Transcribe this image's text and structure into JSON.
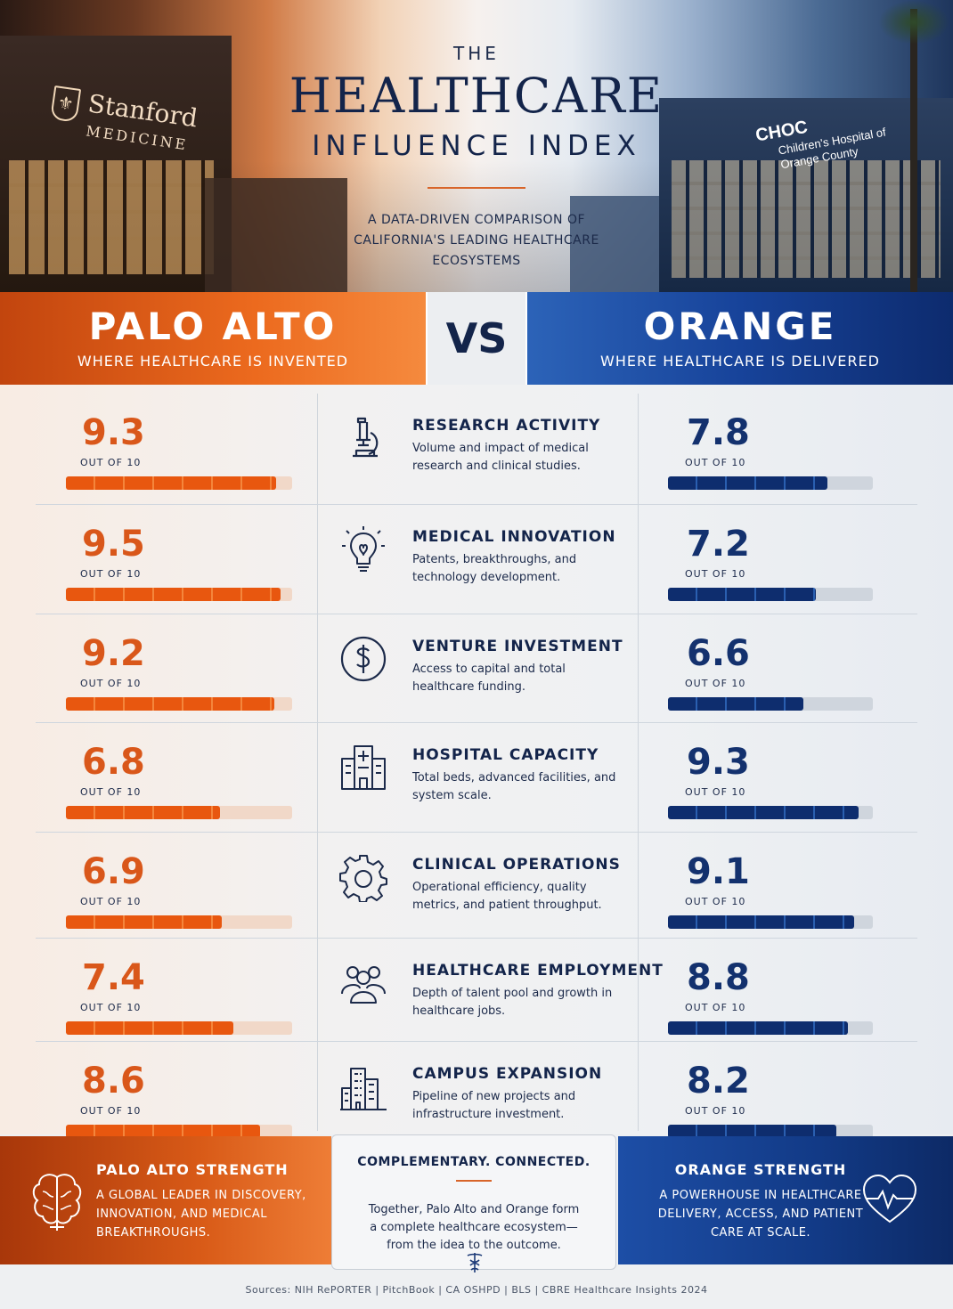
{
  "header": {
    "the": "THE",
    "title": "HEALTHCARE",
    "subtitle": "INFLUENCE INDEX",
    "description": "A DATA-DRIVEN COMPARISON OF CALIFORNIA'S LEADING HEALTHCARE ECOSYSTEMS",
    "left_logo_name": "Stanford",
    "left_logo_sub": "MEDICINE",
    "right_logo_name": "CHOC",
    "right_logo_sub": "Children's Hospital of Orange County"
  },
  "banner": {
    "left_city": "PALO ALTO",
    "left_tagline": "WHERE HEALTHCARE IS INVENTED",
    "vs": "VS",
    "right_city": "ORANGE",
    "right_tagline": "WHERE HEALTHCARE IS DELIVERED"
  },
  "out_of_label": "OUT OF 10",
  "colors": {
    "palo_alto": "#e8570f",
    "orange": "#13316e"
  },
  "chart_data": {
    "type": "bar",
    "scale_max": 10,
    "categories": [
      "RESEARCH ACTIVITY",
      "MEDICAL INNOVATION",
      "VENTURE INVESTMENT",
      "HOSPITAL CAPACITY",
      "CLINICAL OPERATIONS",
      "HEALTHCARE EMPLOYMENT",
      "CAMPUS EXPANSION"
    ],
    "descriptions": [
      "Volume and impact of medical research and clinical studies.",
      "Patents, breakthroughs, and technology development.",
      "Access to capital and total healthcare funding.",
      "Total beds, advanced facilities, and system scale.",
      "Operational efficiency, quality metrics, and patient throughput.",
      "Depth of talent pool and growth in healthcare jobs.",
      "Pipeline of new projects and infrastructure investment."
    ],
    "icons": [
      "microscope-icon",
      "lightbulb-icon",
      "dollar-icon",
      "hospital-icon",
      "gear-icon",
      "people-icon",
      "buildings-icon"
    ],
    "series": [
      {
        "name": "PALO ALTO",
        "values": [
          "9.3",
          "9.5",
          "9.2",
          "6.8",
          "6.9",
          "7.4",
          "8.6"
        ]
      },
      {
        "name": "ORANGE",
        "values": [
          "7.8",
          "7.2",
          "6.6",
          "9.3",
          "9.1",
          "8.8",
          "8.2"
        ]
      }
    ]
  },
  "footer": {
    "left_title": "PALO ALTO STRENGTH",
    "left_text": "A GLOBAL LEADER IN DISCOVERY, INNOVATION, AND MEDICAL BREAKTHROUGHS.",
    "mid_title": "COMPLEMENTARY. CONNECTED.",
    "mid_text": "Together, Palo Alto and Orange form a complete healthcare ecosystem— from the idea to the outcome.",
    "right_title": "ORANGE STRENGTH",
    "right_text": "A POWERHOUSE IN HEALTHCARE DELIVERY, ACCESS, AND PATIENT CARE AT SCALE.",
    "sources": "Sources: NIH RePORTER  |  PitchBook  |  CA OSHPD  |  BLS  |  CBRE Healthcare Insights 2024"
  }
}
